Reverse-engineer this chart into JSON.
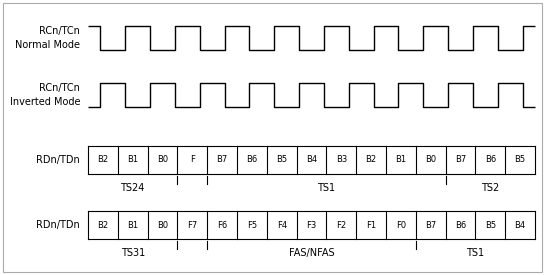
{
  "bg_color": "#ffffff",
  "fig_bg": "#ffffff",
  "line_color": "#000000",
  "text_color": "#000000",
  "clock_normal_label": "RCn/TCn\nNormal Mode",
  "clock_inv_label": "RCn/TCn\nInverted Mode",
  "data_label": "RDn/TDn",
  "num_cycles": 18,
  "bus_row3_labels": [
    "B2",
    "B1",
    "B0",
    "F",
    "B7",
    "B6",
    "B5",
    "B4",
    "B3",
    "B2",
    "B1",
    "B0",
    "B7",
    "B6",
    "B5"
  ],
  "bus_row4_labels": [
    "B2",
    "B1",
    "B0",
    "F7",
    "F6",
    "F5",
    "F4",
    "F3",
    "F2",
    "F1",
    "F0",
    "B7",
    "B6",
    "B5",
    "B4"
  ],
  "ts24_label": "TS24",
  "ts1_label_row3": "TS1",
  "ts2_label": "TS2",
  "ts31_label": "TS31",
  "fas_label": "FAS/NFAS",
  "ts1_label_row4": "TS1",
  "label_fontsize": 7,
  "bus_fontsize": 6,
  "ts_fontsize": 7,
  "border_color": "#aaaaaa",
  "clock_lw": 1.0,
  "bus_lw": 0.8
}
